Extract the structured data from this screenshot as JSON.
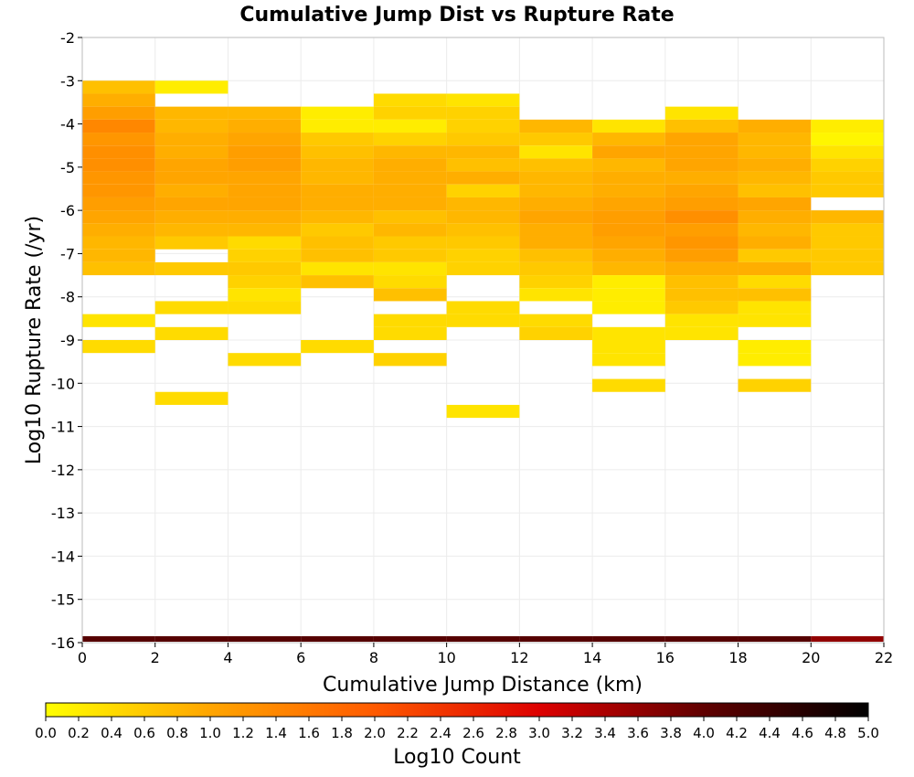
{
  "chart_data": {
    "type": "heatmap",
    "title": "Cumulative Jump Dist vs Rupture Rate",
    "xlabel": "Cumulative Jump Distance (km)",
    "ylabel": "Log10 Rupture Rate (/yr)",
    "xlim": [
      0,
      22
    ],
    "ylim": [
      -16,
      -2
    ],
    "x_ticks": [
      "0",
      "2",
      "4",
      "6",
      "8",
      "10",
      "12",
      "14",
      "16",
      "18",
      "20",
      "22"
    ],
    "y_ticks": [
      "-2",
      "-3",
      "-4",
      "-5",
      "-6",
      "-7",
      "-8",
      "-9",
      "-10",
      "-11",
      "-12",
      "-13",
      "-14",
      "-15",
      "-16"
    ],
    "x_bin_width": 2,
    "y_bin_height": 0.3,
    "grid": true,
    "colorbar": {
      "label": "Log10 Count",
      "range": [
        0,
        5
      ],
      "ticks": [
        "0.0",
        "0.2",
        "0.4",
        "0.6",
        "0.8",
        "1.0",
        "1.2",
        "1.4",
        "1.6",
        "1.8",
        "2.0",
        "2.2",
        "2.4",
        "2.6",
        "2.8",
        "3.0",
        "3.2",
        "3.4",
        "3.6",
        "3.8",
        "4.0",
        "4.2",
        "4.4",
        "4.6",
        "4.8",
        "5.0"
      ],
      "colors": [
        "#ffff00",
        "#ffa500",
        "#ff5a00",
        "#dd0000",
        "#600000",
        "#000000"
      ]
    },
    "cells": [
      {
        "x": 1,
        "cols": [
          [
            -3.15,
            0.7
          ],
          [
            -3.45,
            0.9
          ],
          [
            -3.75,
            1.1
          ],
          [
            -4.05,
            1.4
          ],
          [
            -4.35,
            1.2
          ],
          [
            -4.65,
            1.3
          ],
          [
            -4.95,
            1.3
          ],
          [
            -5.25,
            1.2
          ],
          [
            -5.55,
            1.2
          ],
          [
            -5.85,
            1.1
          ],
          [
            -6.15,
            1.0
          ],
          [
            -6.45,
            0.9
          ],
          [
            -6.75,
            0.8
          ],
          [
            -7.05,
            0.8
          ],
          [
            -7.35,
            0.7
          ],
          [
            -8.55,
            0.3
          ],
          [
            -9.15,
            0.4
          ],
          [
            -16.0,
            4.1
          ]
        ]
      },
      {
        "x": 3,
        "cols": [
          [
            -3.15,
            0.2
          ],
          [
            -3.75,
            0.8
          ],
          [
            -4.05,
            0.8
          ],
          [
            -4.35,
            0.9
          ],
          [
            -4.65,
            0.9
          ],
          [
            -4.95,
            1.0
          ],
          [
            -5.25,
            1.0
          ],
          [
            -5.55,
            0.9
          ],
          [
            -5.85,
            1.0
          ],
          [
            -6.15,
            0.9
          ],
          [
            -6.45,
            0.8
          ],
          [
            -6.75,
            0.6
          ],
          [
            -7.35,
            0.6
          ],
          [
            -8.25,
            0.4
          ],
          [
            -8.85,
            0.4
          ],
          [
            -10.35,
            0.4
          ],
          [
            -16.0,
            4.1
          ]
        ]
      },
      {
        "x": 5,
        "cols": [
          [
            -3.75,
            0.8
          ],
          [
            -4.05,
            0.9
          ],
          [
            -4.35,
            1.0
          ],
          [
            -4.65,
            1.1
          ],
          [
            -4.95,
            1.1
          ],
          [
            -5.25,
            1.0
          ],
          [
            -5.55,
            1.0
          ],
          [
            -5.85,
            1.0
          ],
          [
            -6.15,
            0.9
          ],
          [
            -6.45,
            0.8
          ],
          [
            -6.75,
            0.4
          ],
          [
            -7.05,
            0.5
          ],
          [
            -7.35,
            0.6
          ],
          [
            -7.65,
            0.5
          ],
          [
            -7.95,
            0.3
          ],
          [
            -8.25,
            0.4
          ],
          [
            -9.45,
            0.4
          ],
          [
            -16.0,
            4.1
          ]
        ]
      },
      {
        "x": 7,
        "cols": [
          [
            -3.75,
            0.2
          ],
          [
            -4.05,
            0.2
          ],
          [
            -4.35,
            0.6
          ],
          [
            -4.65,
            0.7
          ],
          [
            -4.95,
            0.8
          ],
          [
            -5.25,
            0.8
          ],
          [
            -5.55,
            0.9
          ],
          [
            -5.85,
            0.9
          ],
          [
            -6.15,
            0.8
          ],
          [
            -6.45,
            0.6
          ],
          [
            -6.75,
            0.7
          ],
          [
            -7.05,
            0.7
          ],
          [
            -7.35,
            0.3
          ],
          [
            -7.65,
            0.7
          ],
          [
            -9.15,
            0.4
          ],
          [
            -16.0,
            4.1
          ]
        ]
      },
      {
        "x": 9,
        "cols": [
          [
            -3.45,
            0.4
          ],
          [
            -3.75,
            0.5
          ],
          [
            -4.05,
            0.2
          ],
          [
            -4.35,
            0.5
          ],
          [
            -4.65,
            0.8
          ],
          [
            -4.95,
            0.9
          ],
          [
            -5.25,
            0.9
          ],
          [
            -5.55,
            0.9
          ],
          [
            -5.85,
            0.9
          ],
          [
            -6.15,
            0.7
          ],
          [
            -6.45,
            0.8
          ],
          [
            -6.75,
            0.6
          ],
          [
            -7.05,
            0.6
          ],
          [
            -7.35,
            0.3
          ],
          [
            -7.65,
            0.4
          ],
          [
            -7.95,
            0.7
          ],
          [
            -8.55,
            0.4
          ],
          [
            -8.85,
            0.4
          ],
          [
            -9.45,
            0.5
          ],
          [
            -16.0,
            4.1
          ]
        ]
      },
      {
        "x": 11,
        "cols": [
          [
            -3.45,
            0.3
          ],
          [
            -3.75,
            0.5
          ],
          [
            -4.05,
            0.5
          ],
          [
            -4.35,
            0.6
          ],
          [
            -4.65,
            0.8
          ],
          [
            -4.95,
            0.7
          ],
          [
            -5.25,
            0.9
          ],
          [
            -5.55,
            0.5
          ],
          [
            -5.85,
            0.8
          ],
          [
            -6.15,
            0.8
          ],
          [
            -6.45,
            0.7
          ],
          [
            -6.75,
            0.6
          ],
          [
            -7.05,
            0.5
          ],
          [
            -7.35,
            0.5
          ],
          [
            -8.25,
            0.4
          ],
          [
            -8.55,
            0.4
          ],
          [
            -10.65,
            0.3
          ],
          [
            -16.0,
            4.1
          ]
        ]
      },
      {
        "x": 13,
        "cols": [
          [
            -4.05,
            0.8
          ],
          [
            -4.35,
            0.6
          ],
          [
            -4.65,
            0.3
          ],
          [
            -4.95,
            0.7
          ],
          [
            -5.25,
            0.8
          ],
          [
            -5.55,
            0.8
          ],
          [
            -5.85,
            0.9
          ],
          [
            -6.15,
            1.0
          ],
          [
            -6.45,
            0.9
          ],
          [
            -6.75,
            0.9
          ],
          [
            -7.05,
            0.7
          ],
          [
            -7.35,
            0.6
          ],
          [
            -7.65,
            0.5
          ],
          [
            -7.95,
            0.3
          ],
          [
            -8.55,
            0.4
          ],
          [
            -8.85,
            0.5
          ],
          [
            -16.0,
            4.1
          ]
        ]
      },
      {
        "x": 15,
        "cols": [
          [
            -4.05,
            0.3
          ],
          [
            -4.35,
            0.8
          ],
          [
            -4.65,
            1.0
          ],
          [
            -4.95,
            0.8
          ],
          [
            -5.25,
            0.9
          ],
          [
            -5.55,
            0.9
          ],
          [
            -5.85,
            1.0
          ],
          [
            -6.15,
            1.1
          ],
          [
            -6.45,
            1.1
          ],
          [
            -6.75,
            1.0
          ],
          [
            -7.05,
            0.9
          ],
          [
            -7.35,
            0.8
          ],
          [
            -7.65,
            0.2
          ],
          [
            -7.95,
            0.2
          ],
          [
            -8.25,
            0.2
          ],
          [
            -8.85,
            0.3
          ],
          [
            -9.15,
            0.3
          ],
          [
            -9.45,
            0.3
          ],
          [
            -10.05,
            0.4
          ],
          [
            -16.0,
            4.1
          ]
        ]
      },
      {
        "x": 17,
        "cols": [
          [
            -3.75,
            0.3
          ],
          [
            -4.05,
            0.7
          ],
          [
            -4.35,
            1.0
          ],
          [
            -4.65,
            1.0
          ],
          [
            -4.95,
            1.0
          ],
          [
            -5.25,
            0.9
          ],
          [
            -5.55,
            1.0
          ],
          [
            -5.85,
            1.1
          ],
          [
            -6.15,
            1.3
          ],
          [
            -6.45,
            1.1
          ],
          [
            -6.75,
            1.2
          ],
          [
            -7.05,
            1.1
          ],
          [
            -7.35,
            0.9
          ],
          [
            -7.65,
            0.7
          ],
          [
            -7.95,
            0.7
          ],
          [
            -8.25,
            0.6
          ],
          [
            -8.55,
            0.3
          ],
          [
            -8.85,
            0.3
          ],
          [
            -16.0,
            4.1
          ]
        ]
      },
      {
        "x": 19,
        "cols": [
          [
            -4.05,
            0.9
          ],
          [
            -4.35,
            0.8
          ],
          [
            -4.65,
            0.8
          ],
          [
            -4.95,
            0.9
          ],
          [
            -5.25,
            0.8
          ],
          [
            -5.55,
            0.7
          ],
          [
            -5.85,
            1.0
          ],
          [
            -6.15,
            0.9
          ],
          [
            -6.45,
            0.8
          ],
          [
            -6.75,
            0.9
          ],
          [
            -7.05,
            0.6
          ],
          [
            -7.35,
            0.9
          ],
          [
            -7.65,
            0.4
          ],
          [
            -7.95,
            0.7
          ],
          [
            -8.25,
            0.3
          ],
          [
            -8.55,
            0.3
          ],
          [
            -9.15,
            0.2
          ],
          [
            -9.45,
            0.2
          ],
          [
            -10.05,
            0.5
          ],
          [
            -16.0,
            4.1
          ]
        ]
      },
      {
        "x": 21,
        "cols": [
          [
            -4.05,
            0.2
          ],
          [
            -4.35,
            0.1
          ],
          [
            -4.65,
            0.3
          ],
          [
            -4.95,
            0.5
          ],
          [
            -5.25,
            0.6
          ],
          [
            -5.55,
            0.6
          ],
          [
            -6.15,
            0.8
          ],
          [
            -6.45,
            0.6
          ],
          [
            -6.75,
            0.6
          ],
          [
            -7.05,
            0.6
          ],
          [
            -7.35,
            0.6
          ],
          [
            -16.0,
            3.6
          ]
        ]
      }
    ]
  }
}
